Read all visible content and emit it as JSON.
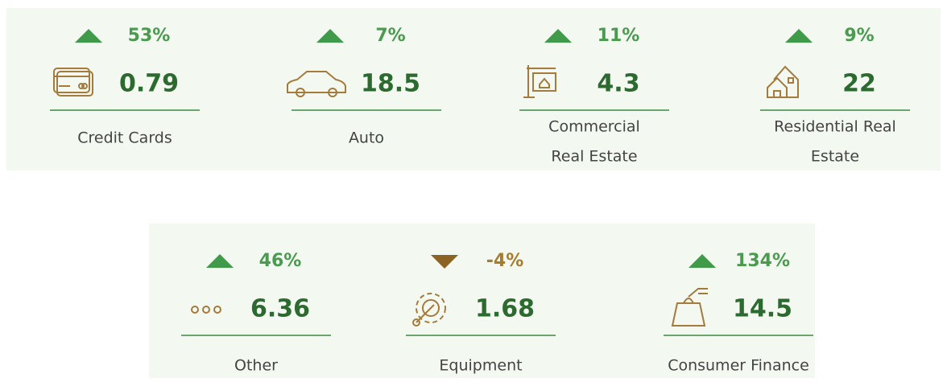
{
  "tiles": [
    {
      "change": "53%",
      "direction": "up",
      "value": "0.79",
      "label_lines": [
        "Credit Cards"
      ]
    },
    {
      "change": "7%",
      "direction": "up",
      "value": "18.5",
      "label_lines": [
        "Auto"
      ]
    },
    {
      "change": "11%",
      "direction": "up",
      "value": "4.3",
      "label_lines": [
        "Commercial",
        "Real Estate"
      ]
    },
    {
      "change": "9%",
      "direction": "up",
      "value": "22",
      "label_lines": [
        "Residential Real",
        "Estate"
      ]
    },
    {
      "change": "46%",
      "direction": "up",
      "value": "6.36",
      "label_lines": [
        "Other"
      ]
    },
    {
      "change": "-4%",
      "direction": "down",
      "value": "1.68",
      "label_lines": [
        "Equipment"
      ]
    },
    {
      "change": "134%",
      "direction": "up",
      "value": "14.5",
      "label_lines": [
        "Consumer Finance"
      ]
    }
  ]
}
